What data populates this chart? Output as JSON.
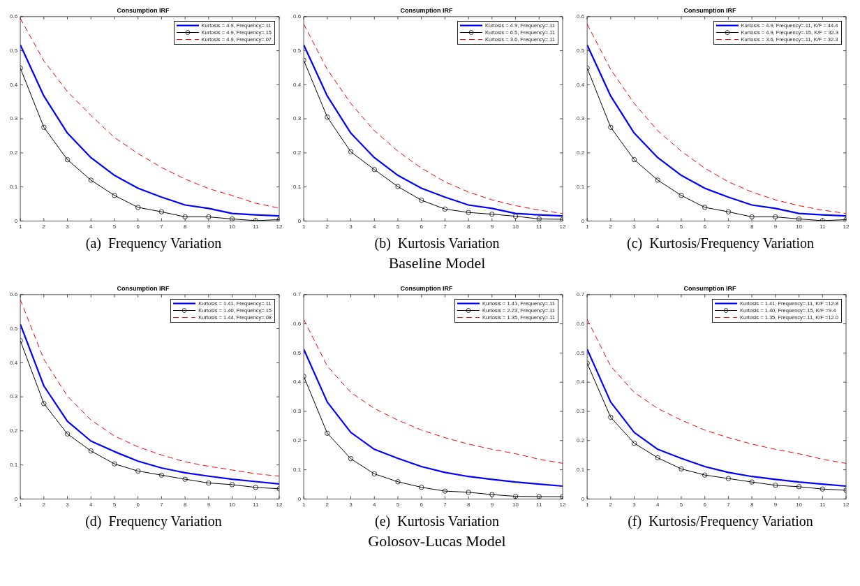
{
  "chart_data": [
    {
      "type": "line",
      "title": "Consumption IRF",
      "annotations": [
        "(a)  Frequency Variation"
      ],
      "x": [
        1,
        2,
        3,
        4,
        5,
        6,
        7,
        8,
        9,
        10,
        11,
        12
      ],
      "xlim": [
        1,
        12
      ],
      "xticks": [
        1,
        2,
        3,
        4,
        5,
        6,
        7,
        8,
        9,
        10,
        11,
        12
      ],
      "ylim": [
        0,
        0.6
      ],
      "yticks": [
        0,
        0.1,
        0.2,
        0.3,
        0.4,
        0.5,
        0.6
      ],
      "grid": false,
      "legend": "top right",
      "series": [
        {
          "name": "Kurtosis = 4.9, Frequency=.11",
          "color": "#0000ff",
          "values": [
            0.517,
            0.367,
            0.258,
            0.186,
            0.134,
            0.096,
            0.07,
            0.047,
            0.037,
            0.022,
            0.018,
            0.015
          ]
        },
        {
          "name": "Kurtosis = 4.9, Frequency=.15",
          "color": "#000000",
          "marker": "circle",
          "values": [
            0.449,
            0.275,
            0.18,
            0.12,
            0.075,
            0.04,
            0.027,
            0.012,
            0.012,
            0.006,
            0.001,
            0.004
          ]
        },
        {
          "name": "Kurtosis = 4.9, Frequency=.07",
          "color": "#ff0000",
          "line_style": "dashed",
          "values": [
            0.595,
            0.47,
            0.38,
            0.31,
            0.245,
            0.198,
            0.157,
            0.123,
            0.095,
            0.075,
            0.052,
            0.038
          ]
        }
      ]
    },
    {
      "type": "line",
      "title": "Consumption IRF",
      "annotations": [
        "(b)  Kurtosis Variation",
        "Baseline Model"
      ],
      "x": [
        1,
        2,
        3,
        4,
        5,
        6,
        7,
        8,
        9,
        10,
        11,
        12
      ],
      "xlim": [
        1,
        12
      ],
      "xticks": [
        1,
        2,
        3,
        4,
        5,
        6,
        7,
        8,
        9,
        10,
        11,
        12
      ],
      "ylim": [
        0,
        0.6
      ],
      "yticks": [
        0,
        0.1,
        0.2,
        0.3,
        0.4,
        0.5,
        0.6
      ],
      "grid": false,
      "legend": "top right",
      "series": [
        {
          "name": "Kurtosis = 4.9, Frequency=.11",
          "color": "#0000ff",
          "values": [
            0.517,
            0.367,
            0.258,
            0.186,
            0.134,
            0.096,
            0.07,
            0.047,
            0.037,
            0.022,
            0.018,
            0.015
          ]
        },
        {
          "name": "Kurtosis = 6.5, Frequency=.11",
          "color": "#000000",
          "marker": "circle",
          "values": [
            0.472,
            0.305,
            0.203,
            0.151,
            0.101,
            0.061,
            0.035,
            0.025,
            0.02,
            0.014,
            0.006,
            0.005
          ]
        },
        {
          "name": "Kurtosis = 3.6, Frequency=.11",
          "color": "#ff0000",
          "line_style": "dashed",
          "values": [
            0.578,
            0.445,
            0.345,
            0.265,
            0.205,
            0.155,
            0.115,
            0.085,
            0.062,
            0.045,
            0.032,
            0.022
          ]
        }
      ]
    },
    {
      "type": "line",
      "title": "Consumption IRF",
      "annotations": [
        "(c)  Kurtosis/Frequency Variation"
      ],
      "x": [
        1,
        2,
        3,
        4,
        5,
        6,
        7,
        8,
        9,
        10,
        11,
        12
      ],
      "xlim": [
        1,
        12
      ],
      "xticks": [
        1,
        2,
        3,
        4,
        5,
        6,
        7,
        8,
        9,
        10,
        11,
        12
      ],
      "ylim": [
        0,
        0.6
      ],
      "yticks": [
        0,
        0.1,
        0.2,
        0.3,
        0.4,
        0.5,
        0.6
      ],
      "grid": false,
      "legend": "top right",
      "series": [
        {
          "name": "Kurtosis = 4.9, Frequency=.11, K/F = 44.4",
          "color": "#0000ff",
          "values": [
            0.517,
            0.367,
            0.258,
            0.186,
            0.134,
            0.096,
            0.07,
            0.047,
            0.037,
            0.022,
            0.018,
            0.015
          ]
        },
        {
          "name": "Kurtosis = 4.9, Frequency=.15, K/F = 32.3",
          "color": "#000000",
          "marker": "circle",
          "values": [
            0.449,
            0.275,
            0.18,
            0.12,
            0.075,
            0.04,
            0.027,
            0.012,
            0.012,
            0.006,
            0.001,
            0.004
          ]
        },
        {
          "name": "Kurtosis = 3.6, Frequency=.11, K/F = 32.3",
          "color": "#ff0000",
          "line_style": "dashed",
          "values": [
            0.578,
            0.445,
            0.345,
            0.265,
            0.205,
            0.155,
            0.115,
            0.085,
            0.062,
            0.045,
            0.032,
            0.022
          ]
        }
      ]
    },
    {
      "type": "line",
      "title": "Consumption IRF",
      "annotations": [
        "(d)  Frequency Variation"
      ],
      "x": [
        1,
        2,
        3,
        4,
        5,
        6,
        7,
        8,
        9,
        10,
        11,
        12
      ],
      "xlim": [
        1,
        12
      ],
      "xticks": [
        1,
        2,
        3,
        4,
        5,
        6,
        7,
        8,
        9,
        10,
        11,
        12
      ],
      "ylim": [
        0,
        0.6
      ],
      "yticks": [
        0,
        0.1,
        0.2,
        0.3,
        0.4,
        0.5,
        0.6
      ],
      "grid": false,
      "legend": "top right",
      "series": [
        {
          "name": "Kurtosis = 1.41, Frequency=.11",
          "color": "#0000ff",
          "values": [
            0.513,
            0.332,
            0.228,
            0.17,
            0.139,
            0.111,
            0.091,
            0.077,
            0.067,
            0.058,
            0.051,
            0.044
          ]
        },
        {
          "name": "Kurtosis = 1.40, Frequency=.15",
          "color": "#000000",
          "marker": "circle",
          "values": [
            0.465,
            0.28,
            0.191,
            0.141,
            0.103,
            0.082,
            0.07,
            0.058,
            0.047,
            0.042,
            0.034,
            0.03
          ]
        },
        {
          "name": "Kurtosis = 1.44, Frequency=.08",
          "color": "#ff0000",
          "line_style": "dashed",
          "values": [
            0.585,
            0.41,
            0.302,
            0.232,
            0.185,
            0.153,
            0.129,
            0.109,
            0.096,
            0.085,
            0.074,
            0.067
          ]
        }
      ]
    },
    {
      "type": "line",
      "title": "Consumption IRF",
      "annotations": [
        "(e)  Kurtosis Variation",
        "Golosov-Lucas Model"
      ],
      "x": [
        1,
        2,
        3,
        4,
        5,
        6,
        7,
        8,
        9,
        10,
        11,
        12
      ],
      "xlim": [
        1,
        12
      ],
      "xticks": [
        1,
        2,
        3,
        4,
        5,
        6,
        7,
        8,
        9,
        10,
        11,
        12
      ],
      "ylim": [
        0,
        0.7
      ],
      "yticks": [
        0,
        0.1,
        0.2,
        0.3,
        0.4,
        0.5,
        0.6,
        0.7
      ],
      "grid": false,
      "legend": "top right",
      "series": [
        {
          "name": "Kurtosis = 1.41, Frequency=.11",
          "color": "#0000ff",
          "values": [
            0.513,
            0.332,
            0.228,
            0.17,
            0.139,
            0.111,
            0.091,
            0.077,
            0.067,
            0.058,
            0.051,
            0.044
          ]
        },
        {
          "name": "Kurtosis = 2.23, Frequency=.11",
          "color": "#000000",
          "marker": "circle",
          "values": [
            0.42,
            0.225,
            0.138,
            0.086,
            0.059,
            0.04,
            0.027,
            0.023,
            0.015,
            0.009,
            0.008,
            0.008
          ]
        },
        {
          "name": "Kurtosis = 1.35, Frequency=.11",
          "color": "#ff0000",
          "line_style": "dashed",
          "values": [
            0.615,
            0.455,
            0.365,
            0.31,
            0.27,
            0.236,
            0.21,
            0.188,
            0.17,
            0.155,
            0.136,
            0.122
          ]
        }
      ]
    },
    {
      "type": "line",
      "title": "Consumption IRF",
      "annotations": [
        "(f)  Kurtosis/Frequency Variation"
      ],
      "x": [
        1,
        2,
        3,
        4,
        5,
        6,
        7,
        8,
        9,
        10,
        11,
        12
      ],
      "xlim": [
        1,
        12
      ],
      "xticks": [
        1,
        2,
        3,
        4,
        5,
        6,
        7,
        8,
        9,
        10,
        11,
        12
      ],
      "ylim": [
        0,
        0.7
      ],
      "yticks": [
        0,
        0.1,
        0.2,
        0.3,
        0.4,
        0.5,
        0.6,
        0.7
      ],
      "grid": false,
      "legend": "top right",
      "series": [
        {
          "name": "Kurtosis = 1.41, Frequency=.11, K/F =12.8",
          "color": "#0000ff",
          "values": [
            0.513,
            0.332,
            0.228,
            0.17,
            0.139,
            0.111,
            0.091,
            0.077,
            0.067,
            0.058,
            0.051,
            0.044
          ]
        },
        {
          "name": "Kurtosis = 1.40, Frequency=.15, K/F =9.4",
          "color": "#000000",
          "marker": "circle",
          "values": [
            0.465,
            0.28,
            0.191,
            0.141,
            0.103,
            0.082,
            0.07,
            0.058,
            0.047,
            0.042,
            0.034,
            0.03
          ]
        },
        {
          "name": "Kurtosis = 1.35, Frequency=.11, K/F =12.0",
          "color": "#ff0000",
          "line_style": "dashed",
          "values": [
            0.615,
            0.455,
            0.365,
            0.31,
            0.27,
            0.236,
            0.21,
            0.188,
            0.17,
            0.155,
            0.136,
            0.122
          ]
        }
      ]
    }
  ]
}
